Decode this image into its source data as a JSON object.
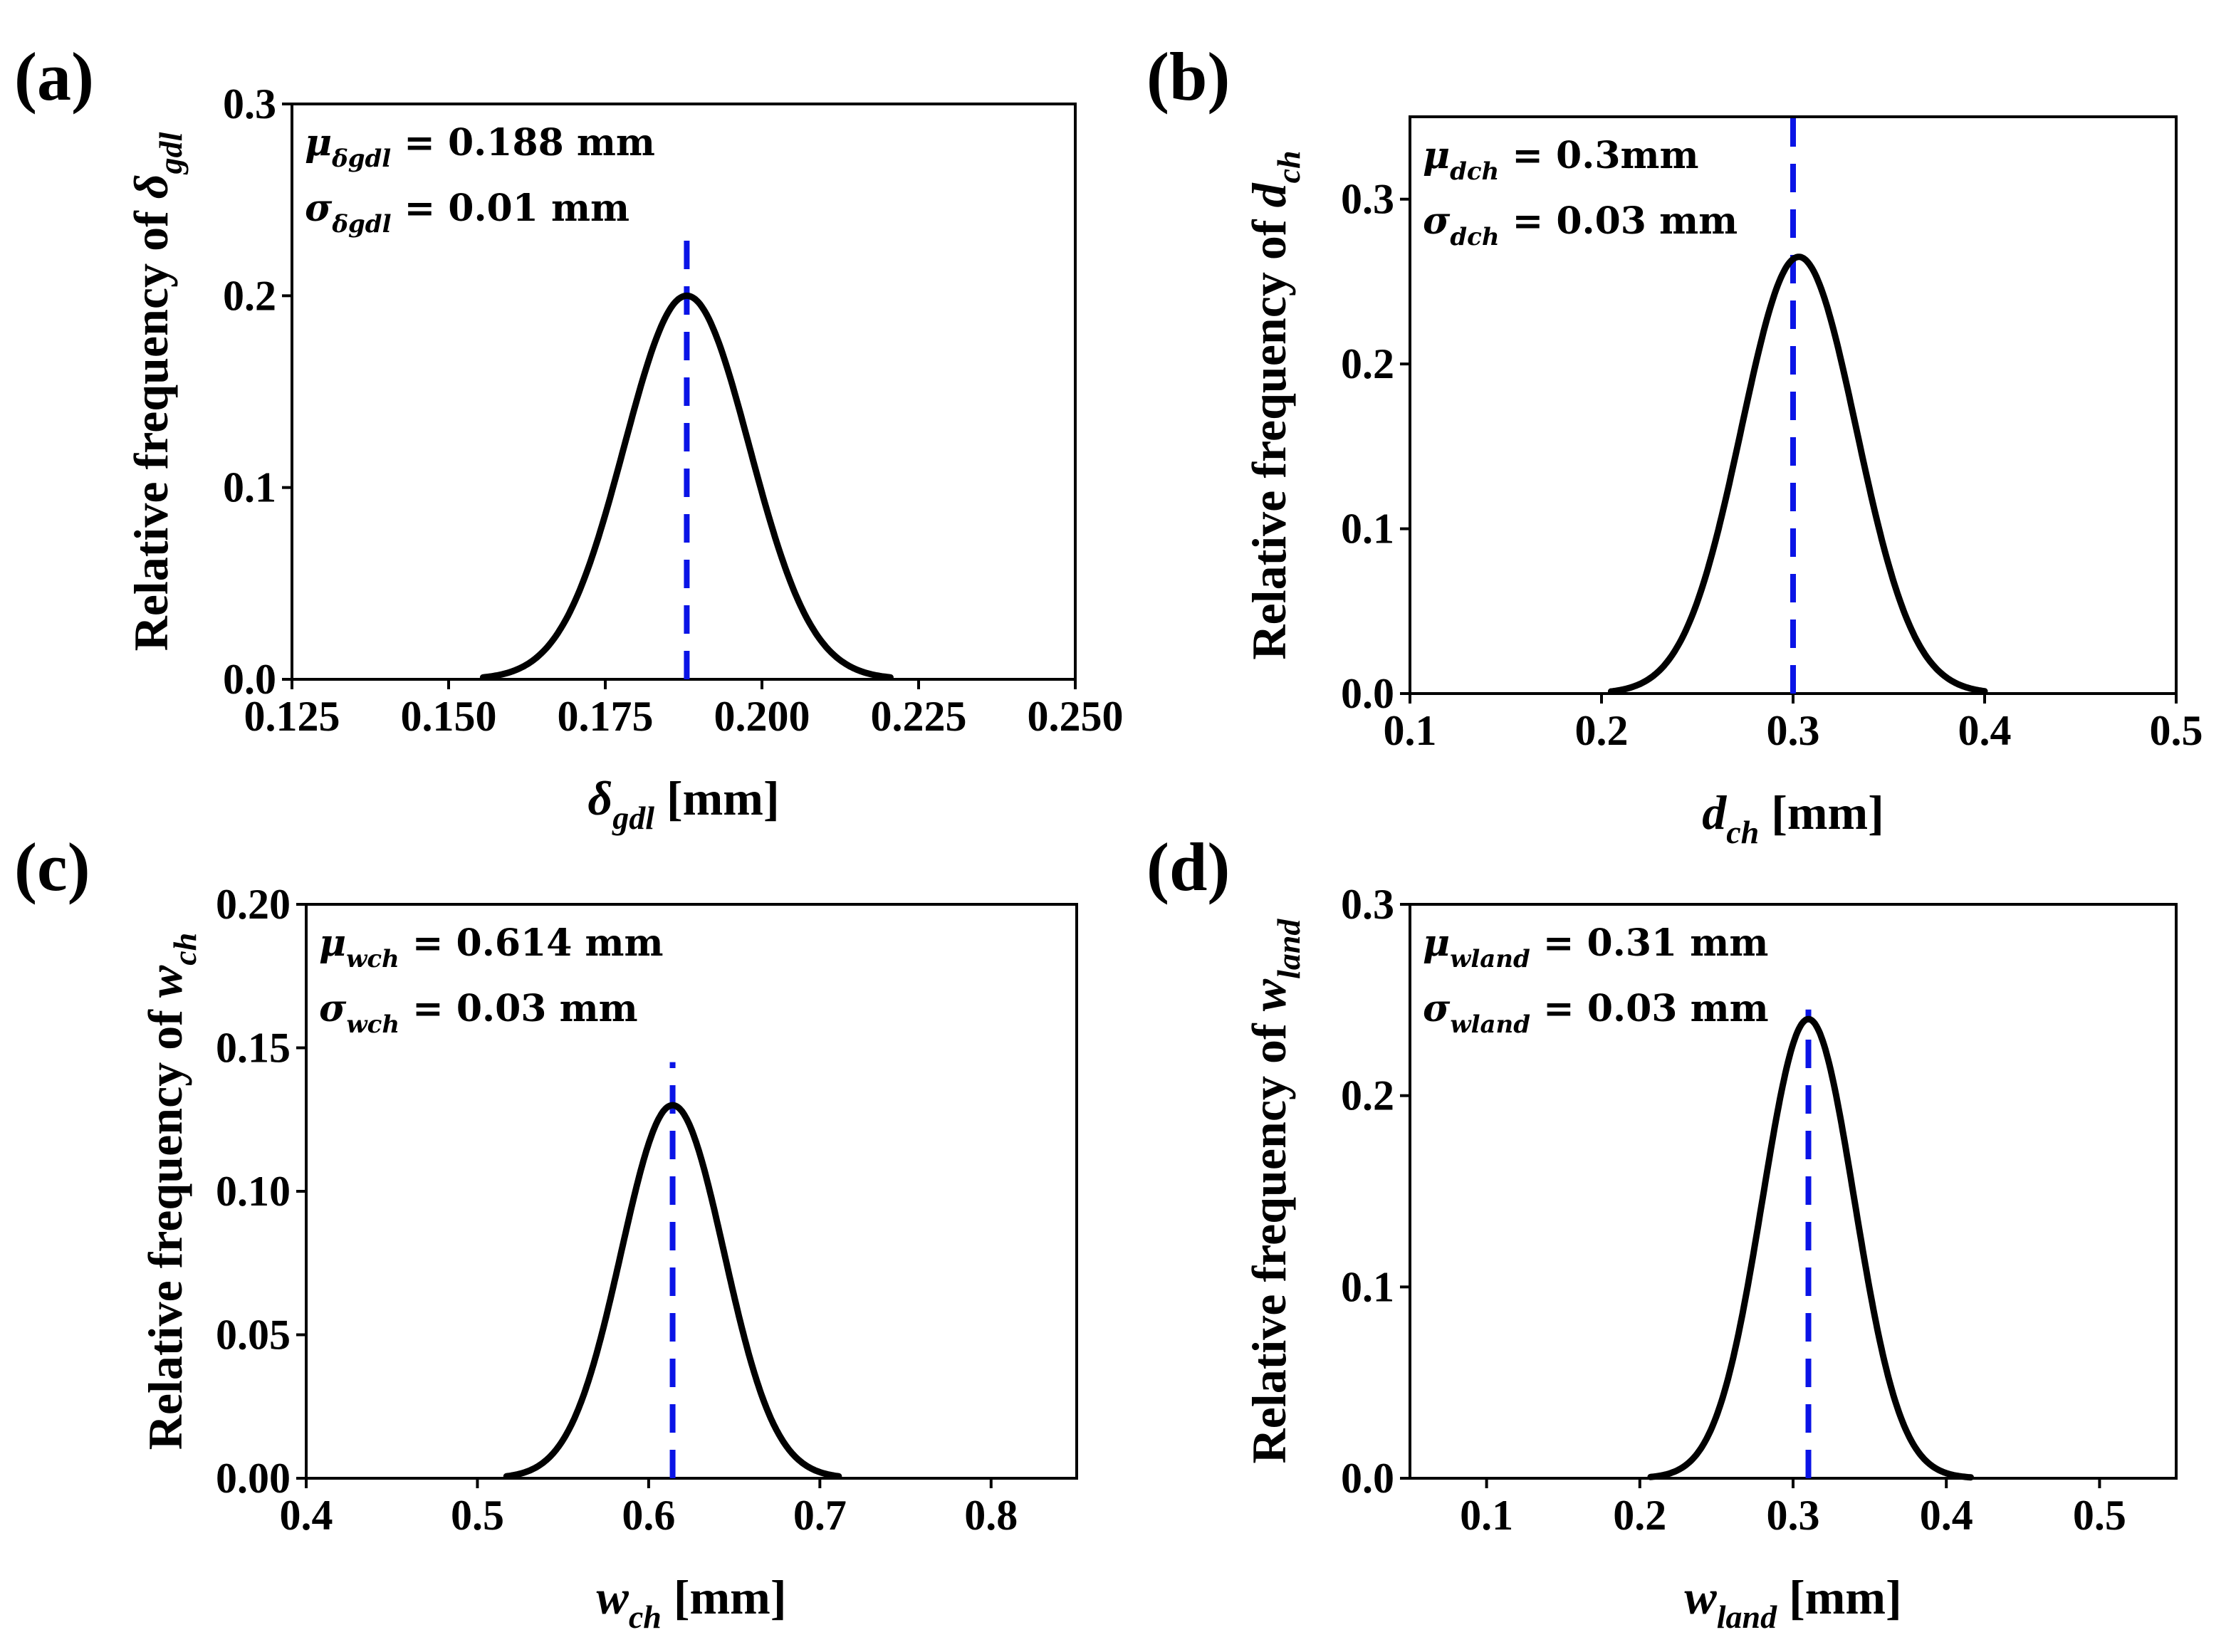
{
  "chart_data": [
    {
      "type": "line",
      "panel": "(a)",
      "series": [
        {
          "name": "Normal distribution",
          "mu": 0.188,
          "sigma": 0.01,
          "peak": 0.2,
          "x_range": [
            0.1555,
            0.2205
          ]
        }
      ],
      "mean_line": {
        "x": 0.188,
        "y_top": 0.235
      },
      "xlabel": {
        "sym": "δ",
        "sub": "gdl",
        "unit": " [mm]"
      },
      "ylabel": {
        "text": "Relative frequency of ",
        "sym": "δ",
        "sub": "gdl"
      },
      "xlim": [
        0.125,
        0.25
      ],
      "ylim": [
        0,
        0.3
      ],
      "xticks": [
        "0.125",
        "0.150",
        "0.175",
        "0.200",
        "0.225",
        "0.250"
      ],
      "xtick_values": [
        0.125,
        0.15,
        0.175,
        0.2,
        0.225,
        0.25
      ],
      "yticks": [
        "0.0",
        "0.1",
        "0.2",
        "0.3"
      ],
      "ytick_values": [
        0,
        0.1,
        0.2,
        0.3
      ],
      "annotation": [
        {
          "sym": "μ",
          "sub": "δgdl",
          "rest": " = 0.188 mm"
        },
        {
          "sym": "σ",
          "sub": "δgdl",
          "rest": " = 0.01 mm"
        }
      ]
    },
    {
      "type": "line",
      "panel": "(b)",
      "series": [
        {
          "name": "Normal distribution",
          "mu": 0.303,
          "sigma": 0.03,
          "peak": 0.265,
          "x_range": [
            0.205,
            0.4
          ]
        }
      ],
      "mean_line": {
        "x": 0.3,
        "y_top": 0.35
      },
      "xlabel": {
        "sym": "d",
        "sub": "ch",
        "unit": " [mm]"
      },
      "ylabel": {
        "text": "Relative frequency of ",
        "sym": "d",
        "sub": "ch"
      },
      "xlim": [
        0.1,
        0.5
      ],
      "ylim": [
        0,
        0.35
      ],
      "xticks": [
        "0.1",
        "0.2",
        "0.3",
        "0.4",
        "0.5"
      ],
      "xtick_values": [
        0.1,
        0.2,
        0.3,
        0.4,
        0.5
      ],
      "yticks": [
        "0.0",
        "0.1",
        "0.2",
        "0.3"
      ],
      "ytick_values": [
        0,
        0.1,
        0.2,
        0.3
      ],
      "annotation": [
        {
          "sym": "μ",
          "sub": "dch",
          "rest": " = 0.3mm"
        },
        {
          "sym": "σ",
          "sub": "dch",
          "rest": " = 0.03 mm"
        }
      ]
    },
    {
      "type": "line",
      "panel": "(c)",
      "series": [
        {
          "name": "Normal distribution",
          "mu": 0.614,
          "sigma": 0.03,
          "peak": 0.13,
          "x_range": [
            0.517,
            0.711
          ]
        }
      ],
      "mean_line": {
        "x": 0.614,
        "y_top": 0.145
      },
      "xlabel": {
        "sym": "w",
        "sub": "ch",
        "unit": " [mm]"
      },
      "ylabel": {
        "text": "Relative frequency of ",
        "sym": "w",
        "sub": "ch"
      },
      "xlim": [
        0.4,
        0.85
      ],
      "ylim": [
        0,
        0.2
      ],
      "xticks": [
        "0.4",
        "0.5",
        "0.6",
        "0.7",
        "0.8"
      ],
      "xtick_values": [
        0.4,
        0.5,
        0.6,
        0.7,
        0.8
      ],
      "yticks": [
        "0.00",
        "0.05",
        "0.10",
        "0.15",
        "0.20"
      ],
      "ytick_values": [
        0,
        0.05,
        0.1,
        0.15,
        0.2
      ],
      "annotation": [
        {
          "sym": "μ",
          "sub": "wch",
          "rest": " = 0.614 mm"
        },
        {
          "sym": "σ",
          "sub": "wch",
          "rest": " = 0.03 mm"
        }
      ]
    },
    {
      "type": "line",
      "panel": "(d)",
      "series": [
        {
          "name": "Normal distribution",
          "mu": 0.31,
          "sigma": 0.03,
          "peak": 0.24,
          "x_range": [
            0.207,
            0.416
          ]
        }
      ],
      "mean_line": {
        "x": 0.31,
        "y_top": 0.245
      },
      "xlabel": {
        "sym": "w",
        "sub": "land",
        "unit": " [mm]"
      },
      "ylabel": {
        "text": "Relative frequency of ",
        "sym": "w",
        "sub": "land"
      },
      "xlim": [
        0.05,
        0.55
      ],
      "ylim": [
        0,
        0.3
      ],
      "xticks": [
        "0.1",
        "0.2",
        "0.3",
        "0.4",
        "0.5"
      ],
      "xtick_values": [
        0.1,
        0.2,
        0.3,
        0.4,
        0.5
      ],
      "yticks": [
        "0.0",
        "0.1",
        "0.2",
        "0.3"
      ],
      "ytick_values": [
        0,
        0.1,
        0.2,
        0.3
      ],
      "annotation": [
        {
          "sym": "μ",
          "sub": "wland",
          "rest": " = 0.31 mm"
        },
        {
          "sym": "σ",
          "sub": "wland",
          "rest": " = 0.03 mm"
        }
      ]
    }
  ]
}
